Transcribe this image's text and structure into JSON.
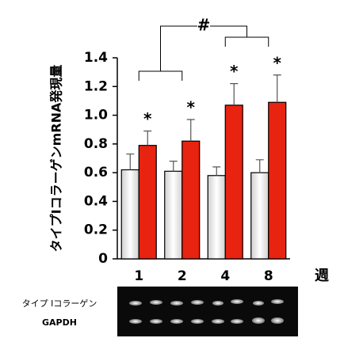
{
  "chart_data": {
    "type": "bar",
    "y_label": "タイプIコラーゲンmRNA発現量",
    "x_label": "週",
    "categories": [
      "1",
      "2",
      "4",
      "8"
    ],
    "series": [
      {
        "color": "#d0d0d0",
        "values": [
          0.62,
          0.61,
          0.58,
          0.6
        ],
        "errors": [
          0.11,
          0.07,
          0.06,
          0.09
        ]
      },
      {
        "color": "#e8230f",
        "values": [
          0.79,
          0.82,
          1.07,
          1.09
        ],
        "errors": [
          0.1,
          0.15,
          0.15,
          0.19
        ]
      }
    ],
    "significance": [
      "*",
      "*",
      "*",
      "*"
    ],
    "bracket_label": "#",
    "ylim": [
      0,
      1.4
    ],
    "yticks": [
      0,
      0.2,
      0.4,
      0.6,
      0.8,
      {
        "value": 1,
        "label": "1.0"
      },
      1.2,
      1.4
    ],
    "gel_labels": [
      "タイプ Ⅰコラーゲン",
      "GAPDH"
    ]
  }
}
